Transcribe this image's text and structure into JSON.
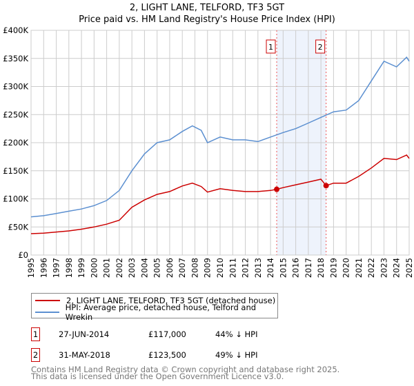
{
  "chart_data": {
    "type": "line",
    "title": "2, LIGHT LANE, TELFORD, TF3 5GT",
    "subtitle": "Price paid vs. HM Land Registry's House Price Index (HPI)",
    "xlim": [
      1995,
      2025
    ],
    "ylim": [
      0,
      400000
    ],
    "y_ticks": [
      {
        "v": 0,
        "label": "£0"
      },
      {
        "v": 50000,
        "label": "£50K"
      },
      {
        "v": 100000,
        "label": "£100K"
      },
      {
        "v": 150000,
        "label": "£150K"
      },
      {
        "v": 200000,
        "label": "£200K"
      },
      {
        "v": 250000,
        "label": "£250K"
      },
      {
        "v": 300000,
        "label": "£300K"
      },
      {
        "v": 350000,
        "label": "£350K"
      },
      {
        "v": 400000,
        "label": "£400K"
      }
    ],
    "x_ticks": [
      "1995",
      "1996",
      "1997",
      "1998",
      "1999",
      "2000",
      "2001",
      "2002",
      "2003",
      "2004",
      "2005",
      "2006",
      "2007",
      "2008",
      "2009",
      "2010",
      "2011",
      "2012",
      "2013",
      "2014",
      "2015",
      "2016",
      "2017",
      "2018",
      "2019",
      "2020",
      "2021",
      "2022",
      "2023",
      "2024",
      "2025"
    ],
    "grid": true,
    "series": [
      {
        "name": "2, LIGHT LANE, TELFORD, TF3 5GT (detached house)",
        "color": "#cc0000",
        "x": [
          1995,
          1996,
          1997,
          1998,
          1999,
          2000,
          2001,
          2002,
          2003,
          2004,
          2005,
          2006,
          2007,
          2007.8,
          2008.5,
          2009,
          2010,
          2011,
          2012,
          2013,
          2014,
          2014.49,
          2015,
          2016,
          2017,
          2018,
          2018.41,
          2019,
          2020,
          2021,
          2022,
          2023,
          2024,
          2024.8,
          2025
        ],
        "y": [
          38000,
          39000,
          41000,
          43000,
          46000,
          50000,
          55000,
          62000,
          85000,
          98000,
          108000,
          113000,
          123000,
          128000,
          122000,
          112000,
          118000,
          115000,
          113000,
          113000,
          115000,
          117000,
          120000,
          125000,
          130000,
          135000,
          123500,
          128000,
          128000,
          140000,
          155000,
          172000,
          170000,
          178000,
          172000
        ]
      },
      {
        "name": "HPI: Average price, detached house, Telford and Wrekin",
        "color": "#5b8fd0",
        "x": [
          1995,
          1996,
          1997,
          1998,
          1999,
          2000,
          2001,
          2002,
          2003,
          2004,
          2005,
          2006,
          2007,
          2007.8,
          2008.5,
          2009,
          2010,
          2011,
          2012,
          2013,
          2014,
          2015,
          2016,
          2017,
          2018,
          2019,
          2020,
          2021,
          2022,
          2023,
          2024,
          2024.8,
          2025
        ],
        "y": [
          68000,
          70000,
          74000,
          78000,
          82000,
          88000,
          97000,
          115000,
          150000,
          180000,
          200000,
          205000,
          220000,
          230000,
          222000,
          200000,
          210000,
          205000,
          205000,
          202000,
          210000,
          218000,
          225000,
          235000,
          245000,
          255000,
          258000,
          275000,
          310000,
          345000,
          335000,
          352000,
          345000
        ]
      }
    ],
    "annotations": [
      {
        "label": "1",
        "x": 2014.49,
        "y": 117000
      },
      {
        "label": "2",
        "x": 2018.41,
        "y": 123500
      }
    ],
    "shaded_range": [
      2014.49,
      2018.41
    ]
  },
  "legend": {
    "items": [
      "2, LIGHT LANE, TELFORD, TF3 5GT (detached house)",
      "HPI: Average price, detached house, Telford and Wrekin"
    ]
  },
  "transactions": [
    {
      "num": "1",
      "date": "27-JUN-2014",
      "price": "£117,000",
      "hpi": "44% ↓ HPI"
    },
    {
      "num": "2",
      "date": "31-MAY-2018",
      "price": "£123,500",
      "hpi": "49% ↓ HPI"
    }
  ],
  "footer": {
    "line1": "Contains HM Land Registry data © Crown copyright and database right 2025.",
    "line2": "This data is licensed under the Open Government Licence v3.0."
  }
}
